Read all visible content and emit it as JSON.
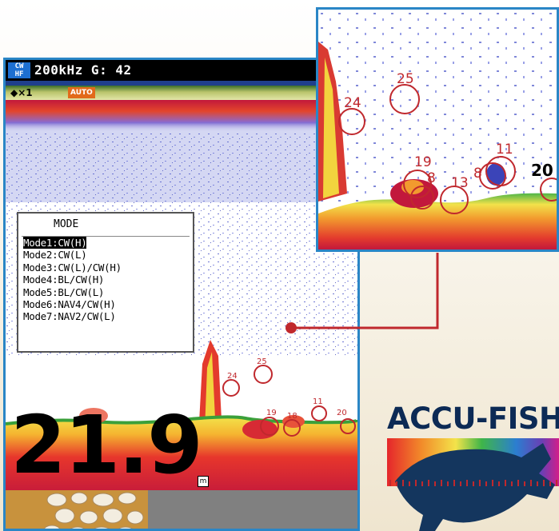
{
  "status_bar": {
    "mode_badge_top": "CW",
    "mode_badge_bottom": "HF",
    "frequency_gain": "200kHz G: 42"
  },
  "range_indicator": "◆×1",
  "auto_badge": "AUTO",
  "depth": {
    "value": "21.9",
    "unit": "m"
  },
  "mode_menu": {
    "title": "MODE",
    "items": [
      "Mode1:CW(H)",
      "Mode2:CW(L)",
      "Mode3:CW(L)/CW(H)",
      "Mode4:BL/CW(H)",
      "Mode5:BL/CW(L)",
      "Mode6:NAV4/CW(H)",
      "Mode7:NAV2/CW(L)"
    ],
    "selected_index": 0
  },
  "fish_markers_main": [
    "24",
    "25",
    "19",
    "18",
    "11",
    "20"
  ],
  "fish_markers_zoom": [
    "24",
    "25",
    "19",
    "8",
    "13",
    "8",
    "11",
    "20"
  ],
  "logo": {
    "text": "ACCU-FISH"
  },
  "colors": {
    "screen_border": "#2a86c6",
    "connector": "#c0282d",
    "logo_text": "#0c2a55",
    "fish_silhouette": "#14365e",
    "marker": "#c0282d"
  }
}
